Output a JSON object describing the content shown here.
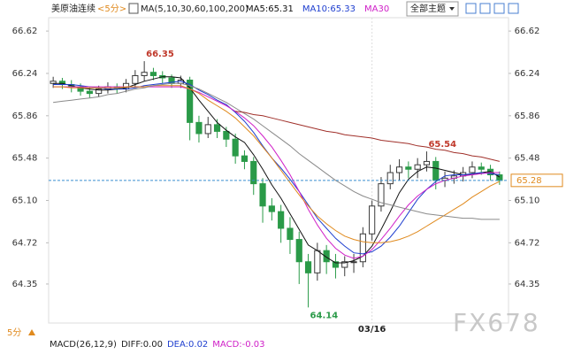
{
  "chart_data": {
    "type": "candlestick",
    "title": "美原油连续",
    "period": "<5分>",
    "ma_label": "MA(5,10,30,60,100,200)",
    "legend": [
      {
        "label": "MA5:65.31",
        "color": "#111111"
      },
      {
        "label": "MA10:65.33",
        "color": "#1f3fcf"
      },
      {
        "label": "MA30",
        "color": "#d020c8"
      }
    ],
    "theme_button": "全部主题",
    "bottom_period": "5分",
    "indicator": [
      {
        "label": "MACD(26,12,9)",
        "color": "#222222"
      },
      {
        "label": "DIFF:0.00",
        "color": "#222222"
      },
      {
        "label": "DEA:0.02",
        "color": "#1f3fcf"
      },
      {
        "label": "MACD:-0.03",
        "color": "#d020c8"
      }
    ],
    "watermark": "FX678",
    "categories": [
      null,
      null,
      null,
      null,
      null,
      null,
      null,
      null,
      null,
      null,
      null,
      null,
      null,
      null,
      null,
      null,
      null,
      null,
      null,
      null,
      null,
      null,
      null,
      null,
      null,
      null,
      null,
      null,
      null,
      null,
      null,
      null,
      null,
      null,
      null,
      "03/16",
      null,
      null,
      null,
      null,
      null,
      null,
      null,
      null,
      null,
      null,
      null,
      null,
      null,
      null
    ],
    "open": [
      66.15,
      66.17,
      66.14,
      66.12,
      66.08,
      66.06,
      66.1,
      66.12,
      66.1,
      66.15,
      66.22,
      66.25,
      66.22,
      66.2,
      66.15,
      66.18,
      65.8,
      65.7,
      65.78,
      65.72,
      65.65,
      65.5,
      65.45,
      65.25,
      65.05,
      65.0,
      64.85,
      64.75,
      64.55,
      64.45,
      64.65,
      64.55,
      64.5,
      64.55,
      64.55,
      64.8,
      65.05,
      65.25,
      65.35,
      65.4,
      65.38,
      65.42,
      65.45,
      65.28,
      65.3,
      65.32,
      65.35,
      65.4,
      65.38,
      65.33
    ],
    "high": [
      66.21,
      66.2,
      66.18,
      66.15,
      66.12,
      66.13,
      66.16,
      66.15,
      66.19,
      66.27,
      66.35,
      66.29,
      66.26,
      66.23,
      66.22,
      66.21,
      65.86,
      65.85,
      65.83,
      65.76,
      65.7,
      65.55,
      65.49,
      65.3,
      65.12,
      65.06,
      64.95,
      64.82,
      64.62,
      64.72,
      64.7,
      64.62,
      64.6,
      64.62,
      64.86,
      65.1,
      65.31,
      65.42,
      65.47,
      65.45,
      65.48,
      65.54,
      65.49,
      65.36,
      65.37,
      65.4,
      65.45,
      65.44,
      65.42,
      65.36
    ],
    "low": [
      66.11,
      66.1,
      66.07,
      66.04,
      66.02,
      66.03,
      66.06,
      66.06,
      66.07,
      66.11,
      66.17,
      66.18,
      66.15,
      66.11,
      66.11,
      65.64,
      65.62,
      65.66,
      65.66,
      65.58,
      65.43,
      65.38,
      65.15,
      64.9,
      64.92,
      64.72,
      64.62,
      64.35,
      64.14,
      64.38,
      64.44,
      64.4,
      64.42,
      64.45,
      64.5,
      64.74,
      65.0,
      65.2,
      65.28,
      65.3,
      65.3,
      65.36,
      65.2,
      65.22,
      65.25,
      65.27,
      65.3,
      65.33,
      65.28,
      65.24
    ],
    "close": [
      66.17,
      66.14,
      66.12,
      66.08,
      66.06,
      66.1,
      66.12,
      66.1,
      66.15,
      66.22,
      66.25,
      66.22,
      66.2,
      66.15,
      66.18,
      65.8,
      65.7,
      65.78,
      65.72,
      65.65,
      65.5,
      65.45,
      65.25,
      65.05,
      65.0,
      64.85,
      64.75,
      64.55,
      64.45,
      64.65,
      64.55,
      64.5,
      64.55,
      64.55,
      64.8,
      65.05,
      65.25,
      65.35,
      65.4,
      65.38,
      65.42,
      65.45,
      65.28,
      65.3,
      65.32,
      65.35,
      65.4,
      65.38,
      65.33,
      65.28
    ],
    "up_color": "#3a3a3a",
    "down_color": "#2a9a48",
    "series": [
      {
        "color": "#111111",
        "values": [
          66.15,
          66.15,
          66.13,
          66.11,
          66.1,
          66.09,
          66.09,
          66.1,
          66.11,
          66.14,
          66.17,
          66.19,
          66.21,
          66.21,
          66.2,
          66.11,
          66.0,
          65.9,
          65.8,
          65.73,
          65.67,
          65.62,
          65.51,
          65.38,
          65.24,
          65.12,
          64.98,
          64.84,
          64.7,
          64.65,
          64.59,
          64.54,
          64.54,
          64.56,
          64.6,
          64.69,
          64.84,
          65.0,
          65.17,
          65.29,
          65.36,
          65.4,
          65.39,
          65.37,
          65.35,
          65.33,
          65.33,
          65.35,
          65.36,
          65.31
        ]
      },
      {
        "color": "#1f3fcf",
        "values": [
          66.14,
          66.14,
          66.14,
          66.13,
          66.12,
          66.11,
          66.1,
          66.1,
          66.1,
          66.11,
          66.13,
          66.14,
          66.15,
          66.16,
          66.17,
          66.14,
          66.09,
          66.05,
          66.0,
          65.96,
          65.89,
          65.81,
          65.71,
          65.59,
          65.48,
          65.39,
          65.29,
          65.18,
          65.06,
          64.94,
          64.85,
          64.76,
          64.69,
          64.63,
          64.62,
          64.64,
          64.69,
          64.77,
          64.87,
          64.99,
          65.11,
          65.2,
          65.27,
          65.32,
          65.33,
          65.33,
          65.34,
          65.35,
          65.34,
          65.33
        ]
      },
      {
        "color": "#d020c8",
        "values": [
          66.12,
          66.12,
          66.12,
          66.12,
          66.12,
          66.12,
          66.12,
          66.12,
          66.12,
          66.12,
          66.12,
          66.12,
          66.12,
          66.12,
          66.12,
          66.1,
          66.07,
          66.03,
          65.99,
          65.95,
          65.9,
          65.84,
          65.77,
          65.68,
          65.58,
          65.46,
          65.33,
          65.18,
          65.02,
          64.88,
          64.76,
          64.67,
          64.61,
          64.58,
          64.6,
          64.66,
          64.75,
          64.85,
          64.96,
          65.06,
          65.14,
          65.2,
          65.25,
          65.28,
          65.3,
          65.32,
          65.33,
          65.34,
          65.35,
          65.35
        ]
      },
      {
        "color": "#e08a1e",
        "values": [
          66.12,
          66.12,
          66.11,
          66.11,
          66.11,
          66.11,
          66.11,
          66.11,
          66.12,
          66.12,
          66.12,
          66.13,
          66.13,
          66.13,
          66.13,
          66.1,
          66.06,
          66.0,
          65.95,
          65.9,
          65.84,
          65.76,
          65.68,
          65.58,
          65.48,
          65.37,
          65.26,
          65.15,
          65.05,
          64.96,
          64.89,
          64.83,
          64.78,
          64.75,
          64.73,
          64.72,
          64.72,
          64.73,
          64.75,
          64.78,
          64.82,
          64.87,
          64.92,
          64.97,
          65.02,
          65.07,
          65.13,
          65.18,
          65.23,
          65.27
        ]
      },
      {
        "color": "#8a8a8a",
        "values": [
          65.98,
          65.99,
          66.0,
          66.01,
          66.02,
          66.03,
          66.05,
          66.06,
          66.08,
          66.1,
          66.11,
          66.13,
          66.14,
          66.15,
          66.15,
          66.13,
          66.1,
          66.06,
          66.02,
          65.98,
          65.93,
          65.88,
          65.83,
          65.77,
          65.71,
          65.65,
          65.59,
          65.52,
          65.46,
          65.4,
          65.34,
          65.28,
          65.23,
          65.18,
          65.14,
          65.11,
          65.08,
          65.06,
          65.04,
          65.02,
          65.0,
          64.98,
          64.97,
          64.96,
          64.95,
          64.94,
          64.94,
          64.93,
          64.93,
          64.93
        ]
      },
      {
        "color": "#a0302a",
        "values": [
          null,
          null,
          null,
          null,
          null,
          null,
          null,
          null,
          null,
          null,
          null,
          null,
          null,
          null,
          null,
          null,
          null,
          null,
          null,
          null,
          65.9,
          65.89,
          65.87,
          65.86,
          65.84,
          65.82,
          65.8,
          65.78,
          65.76,
          65.74,
          65.72,
          65.71,
          65.69,
          65.68,
          65.67,
          65.66,
          65.64,
          65.63,
          65.62,
          65.61,
          65.59,
          65.58,
          65.56,
          65.55,
          65.53,
          65.52,
          65.5,
          65.49,
          65.47,
          65.45
        ]
      }
    ],
    "annotations": [
      66.35,
      65.54,
      64.14
    ],
    "annotation_color": "#c0392b",
    "last_price": 65.28,
    "last_price_color": "#e08a1e",
    "ylim": [
      64.0,
      66.74
    ],
    "yticks": [
      66.62,
      66.24,
      65.86,
      65.48,
      {
        "value": 65.1,
        "label": "65.10"
      },
      64.72,
      64.35
    ],
    "grid": false
  }
}
